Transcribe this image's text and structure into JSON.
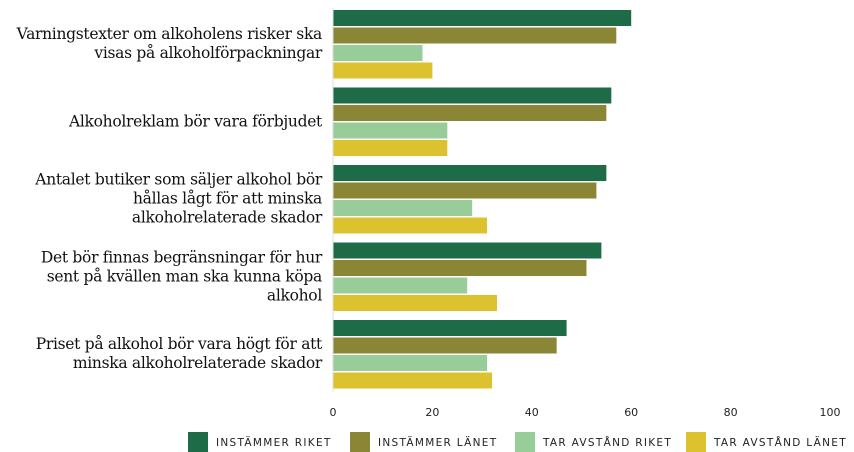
{
  "chart_data": {
    "type": "bar",
    "orientation": "horizontal",
    "categories": [
      "Varningstexter om alkoholens risker ska visas på alkoholförpackningar",
      "Alkoholreklam bör vara förbjudet",
      "Antalet butiker som säljer alkohol bör hållas lågt för att minska alkoholrelaterade skador",
      "Det bör finnas begränsningar för hur sent på kvällen man ska kunna köpa alkohol",
      "Priset på alkohol bör vara högt för att minska alkoholrelaterade skador"
    ],
    "series": [
      {
        "name": "INSTÄMMER RIKET",
        "color": "#1e6b47",
        "values": [
          60,
          56,
          55,
          54,
          47
        ]
      },
      {
        "name": "INSTÄMMER LÄNET",
        "color": "#8a8636",
        "values": [
          57,
          55,
          53,
          51,
          45
        ]
      },
      {
        "name": "TAR AVSTÅND RIKET",
        "color": "#98cc98",
        "values": [
          18,
          23,
          28,
          27,
          31
        ]
      },
      {
        "name": "TAR AVSTÅND LÄNET",
        "color": "#dcc22e",
        "values": [
          20,
          23,
          31,
          33,
          32
        ]
      }
    ],
    "xlim": [
      0,
      100
    ],
    "xticks": [
      0,
      20,
      40,
      60,
      80,
      100
    ],
    "legend": "bottom"
  }
}
